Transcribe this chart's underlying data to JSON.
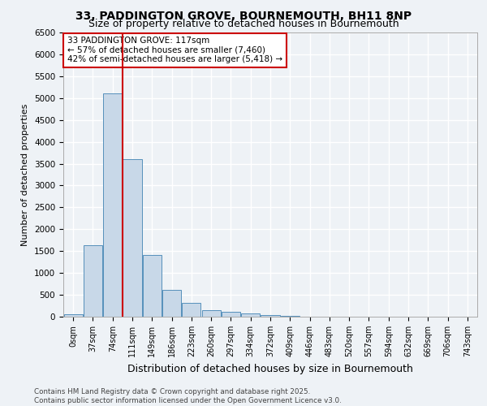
{
  "title_line1": "33, PADDINGTON GROVE, BOURNEMOUTH, BH11 8NP",
  "title_line2": "Size of property relative to detached houses in Bournemouth",
  "xlabel": "Distribution of detached houses by size in Bournemouth",
  "ylabel": "Number of detached properties",
  "footer_line1": "Contains HM Land Registry data © Crown copyright and database right 2025.",
  "footer_line2": "Contains public sector information licensed under the Open Government Licence v3.0.",
  "bin_labels": [
    "0sqm",
    "37sqm",
    "74sqm",
    "111sqm",
    "149sqm",
    "186sqm",
    "223sqm",
    "260sqm",
    "297sqm",
    "334sqm",
    "372sqm",
    "409sqm",
    "446sqm",
    "483sqm",
    "520sqm",
    "557sqm",
    "594sqm",
    "632sqm",
    "669sqm",
    "706sqm",
    "743sqm"
  ],
  "bar_values": [
    60,
    1640,
    5100,
    3600,
    1410,
    610,
    310,
    145,
    105,
    70,
    30,
    15,
    5,
    0,
    0,
    0,
    0,
    0,
    0,
    0,
    0
  ],
  "bar_color": "#c8d8e8",
  "bar_edge_color": "#5590bb",
  "annotation_text": "33 PADDINGTON GROVE: 117sqm\n← 57% of detached houses are smaller (7,460)\n42% of semi-detached houses are larger (5,418) →",
  "ylim": [
    0,
    6500
  ],
  "yticks": [
    0,
    500,
    1000,
    1500,
    2000,
    2500,
    3000,
    3500,
    4000,
    4500,
    5000,
    5500,
    6000,
    6500
  ],
  "background_color": "#eef2f6",
  "grid_color": "#ffffff",
  "annotation_box_color": "#ffffff",
  "annotation_box_edge": "#cc0000",
  "red_line_color": "#cc0000",
  "red_line_x": 2.5
}
